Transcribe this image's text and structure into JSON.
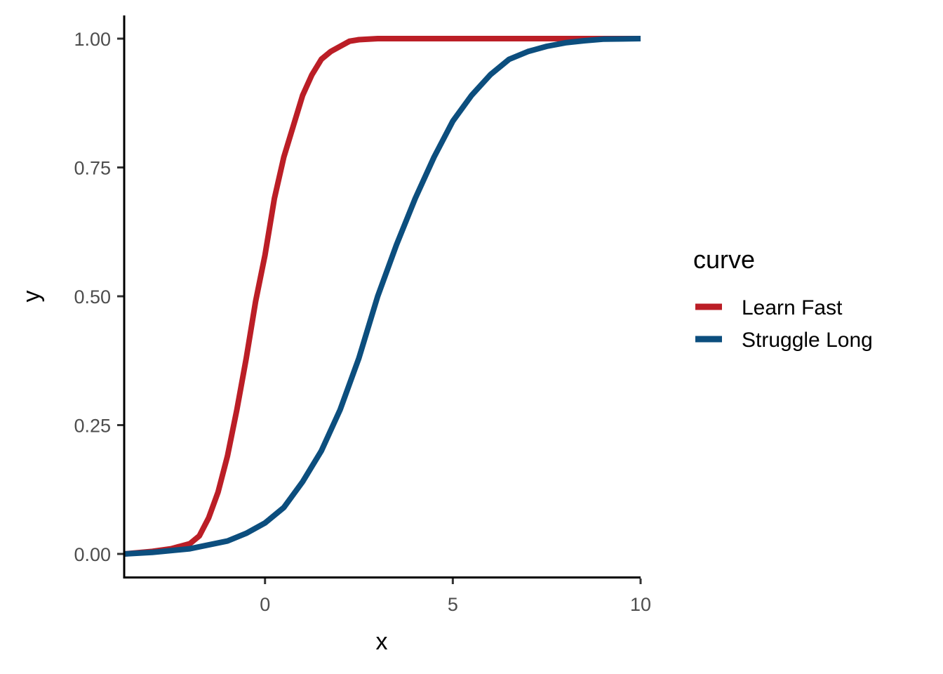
{
  "chart_data": {
    "type": "line",
    "title": "",
    "xlabel": "x",
    "ylabel": "y",
    "xlim": [
      -3.75,
      10
    ],
    "ylim": [
      -0.045,
      1.045
    ],
    "xticks": [
      0,
      5,
      10
    ],
    "xtick_labels": [
      "0",
      "5",
      "10"
    ],
    "yticks": [
      0,
      0.25,
      0.5,
      0.75,
      1.0
    ],
    "ytick_labels": [
      "0.00",
      "0.25",
      "0.50",
      "0.75",
      "1.00"
    ],
    "grid": false,
    "legend": {
      "title": "curve",
      "position": "right"
    },
    "series": [
      {
        "name": "Learn Fast",
        "color": "#BB1E26",
        "x": [
          -3.75,
          -3.0,
          -2.5,
          -2.0,
          -1.75,
          -1.5,
          -1.25,
          -1.0,
          -0.75,
          -0.5,
          -0.25,
          0.0,
          0.25,
          0.5,
          0.75,
          1.0,
          1.25,
          1.5,
          1.75,
          2.0,
          2.25,
          2.5,
          3.0,
          4.0,
          10.0
        ],
        "y": [
          0.0,
          0.005,
          0.01,
          0.02,
          0.035,
          0.07,
          0.12,
          0.19,
          0.28,
          0.38,
          0.49,
          0.58,
          0.69,
          0.77,
          0.83,
          0.89,
          0.93,
          0.96,
          0.975,
          0.985,
          0.995,
          0.998,
          1.0,
          1.0,
          1.0
        ]
      },
      {
        "name": "Struggle Long",
        "color": "#0C4E7E",
        "x": [
          -3.75,
          -3.0,
          -2.0,
          -1.0,
          -0.5,
          0.0,
          0.5,
          1.0,
          1.5,
          2.0,
          2.5,
          3.0,
          3.5,
          4.0,
          4.5,
          5.0,
          5.5,
          6.0,
          6.5,
          7.0,
          7.5,
          8.0,
          8.5,
          9.0,
          10.0
        ],
        "y": [
          0.0,
          0.003,
          0.01,
          0.025,
          0.04,
          0.06,
          0.09,
          0.14,
          0.2,
          0.28,
          0.38,
          0.5,
          0.6,
          0.69,
          0.77,
          0.84,
          0.89,
          0.93,
          0.96,
          0.975,
          0.985,
          0.992,
          0.996,
          0.999,
          1.0
        ]
      }
    ]
  }
}
